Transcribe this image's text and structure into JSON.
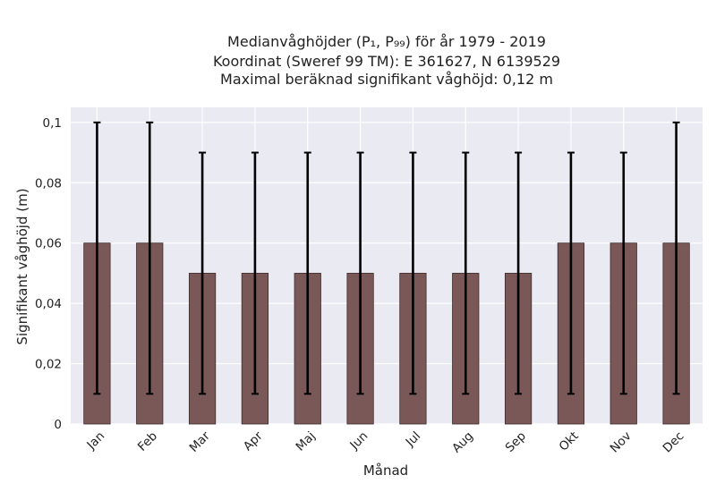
{
  "chart_data": {
    "type": "bar",
    "title_lines": [
      "Medianvåghöjder (P₁, P₉₉) för år 1979 - 2019",
      "Koordinat (Sweref 99 TM): E 361627, N 6139529",
      "Maximal beräknad signifikant våghöjd: 0,12 m"
    ],
    "xlabel": "Månad",
    "ylabel": "Signifikant våghöjd (m)",
    "categories": [
      "Jan",
      "Feb",
      "Mar",
      "Apr",
      "Maj",
      "Jun",
      "Jul",
      "Aug",
      "Sep",
      "Okt",
      "Nov",
      "Dec"
    ],
    "series": [
      {
        "values": [
          0.06,
          0.06,
          0.05,
          0.05,
          0.05,
          0.05,
          0.05,
          0.05,
          0.05,
          0.06,
          0.06,
          0.06
        ],
        "p1": [
          0.01,
          0.01,
          0.01,
          0.01,
          0.01,
          0.01,
          0.01,
          0.01,
          0.01,
          0.01,
          0.01,
          0.01
        ],
        "p99": [
          0.1,
          0.1,
          0.09,
          0.09,
          0.09,
          0.09,
          0.09,
          0.09,
          0.09,
          0.09,
          0.09,
          0.1
        ]
      }
    ],
    "ylim": [
      0,
      0.105
    ],
    "yticks": [
      0,
      0.02,
      0.04,
      0.06,
      0.08,
      0.1
    ],
    "ytick_labels": [
      "0",
      "0,02",
      "0,04",
      "0,06",
      "0,08",
      "0,1"
    ],
    "grid": true,
    "colors": {
      "bar": "#7a5858",
      "bar_edge": "#3d2b2b",
      "errorbar": "#000000",
      "plot_bg": "#eaeaf2",
      "grid": "#ffffff"
    }
  }
}
